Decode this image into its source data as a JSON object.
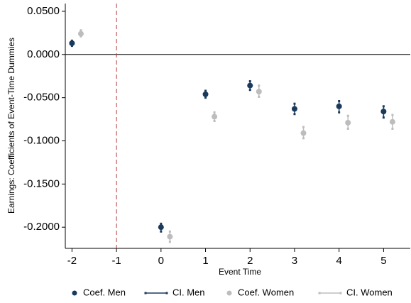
{
  "chart_data": {
    "type": "errorbar",
    "xlabel": "Event Time",
    "ylabel": "Earnings: Coefficients of Event-Time Dummies",
    "xlim": [
      -2.15,
      5.6
    ],
    "ylim": [
      -0.2245,
      0.059
    ],
    "xticks": [
      -2,
      -1,
      0,
      1,
      2,
      3,
      4,
      5
    ],
    "yticks": [
      {
        "value": 0.05,
        "label": "0.0500"
      },
      {
        "value": 0,
        "label": "0.0000"
      },
      {
        "value": -0.05,
        "label": "-0.0500"
      },
      {
        "value": -0.1,
        "label": "-0.1000"
      },
      {
        "value": -0.15,
        "label": "-0.1500"
      },
      {
        "value": -0.2,
        "label": "-0.2000"
      }
    ],
    "vline": -1,
    "vline_color": "#b03a3a",
    "hline": 0,
    "legend": "bottom",
    "series": [
      {
        "name": "Coef. Men",
        "color": "#1a3a5c",
        "x": [
          -2,
          0,
          1,
          2,
          3,
          4,
          5
        ],
        "values": [
          0.013,
          -0.2,
          -0.046,
          -0.036,
          -0.063,
          -0.06,
          -0.066
        ]
      },
      {
        "name": "CI. Men",
        "color": "#1a3a5c",
        "x": [
          -2,
          0,
          1,
          2,
          3,
          4,
          5
        ],
        "low": [
          0.01,
          -0.205,
          -0.05,
          -0.041,
          -0.069,
          -0.067,
          -0.073
        ],
        "high": [
          0.016,
          -0.196,
          -0.042,
          -0.031,
          -0.057,
          -0.054,
          -0.06
        ]
      },
      {
        "name": "Coef. Women",
        "color": "#bdbdbd",
        "x": [
          -1.8,
          0.2,
          1.2,
          2.2,
          3.2,
          4.2,
          5.2
        ],
        "values": [
          0.024,
          -0.211,
          -0.072,
          -0.043,
          -0.091,
          -0.079,
          -0.078
        ]
      },
      {
        "name": "CI. Women",
        "color": "#bdbdbd",
        "x": [
          -1.8,
          0.2,
          1.2,
          2.2,
          3.2,
          4.2,
          5.2
        ],
        "low": [
          0.021,
          -0.217,
          -0.077,
          -0.049,
          -0.097,
          -0.086,
          -0.086
        ],
        "high": [
          0.028,
          -0.205,
          -0.067,
          -0.036,
          -0.084,
          -0.071,
          -0.07
        ]
      }
    ]
  }
}
